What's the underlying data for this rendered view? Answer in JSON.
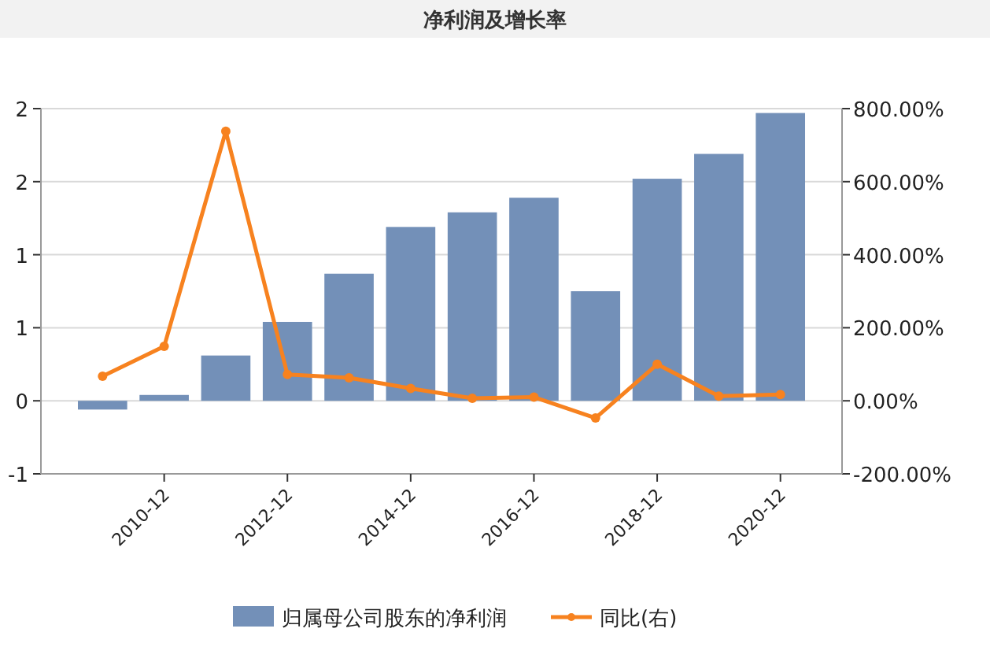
{
  "chart_data": {
    "type": "bar",
    "title": "净利润及增长率",
    "categories": [
      null,
      "2010-12",
      null,
      "2012-12",
      null,
      "2014-12",
      null,
      "2016-12",
      null,
      "2018-12",
      null,
      "2020-12"
    ],
    "series": [
      {
        "name": "归属母公司股东的净利润",
        "color": "#7390b8",
        "values": [
          -0.06,
          0.04,
          0.31,
          0.54,
          0.87,
          1.19,
          1.29,
          1.39,
          0.75,
          1.52,
          1.69,
          1.97
        ]
      },
      {
        "name": "同比(右)",
        "type": "line",
        "axis": "y2",
        "color": "#f7821f",
        "marker": "circle",
        "values": [
          67,
          149,
          738,
          72,
          63,
          34,
          7,
          10,
          -47,
          100,
          13,
          17
        ]
      }
    ],
    "ylim": [
      -0.5,
      2.0
    ],
    "yticks": [
      {
        "value": -0.5,
        "label": "-1"
      },
      0,
      {
        "value": 0.5,
        "label": "1"
      },
      {
        "value": 1.0,
        "label": "1"
      },
      {
        "value": 1.5,
        "label": "2"
      },
      {
        "value": 2.0,
        "label": "2"
      }
    ],
    "y2lim": [
      -200,
      800
    ],
    "y2ticks": [
      {
        "value": -200,
        "label": "-200.00%"
      },
      {
        "value": 0,
        "label": "0.00%"
      },
      {
        "value": 200,
        "label": "200.00%"
      },
      {
        "value": 400,
        "label": "400.00%"
      },
      {
        "value": 600,
        "label": "600.00%"
      },
      {
        "value": 800,
        "label": "800.00%"
      }
    ],
    "grid": "y",
    "legend": "bottom"
  }
}
